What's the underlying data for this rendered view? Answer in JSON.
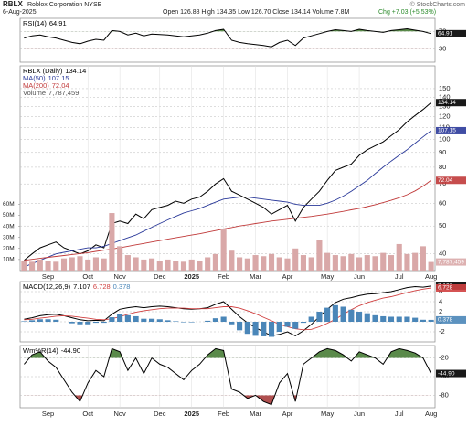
{
  "header": {
    "symbol": "RBLX",
    "company": "Roblox Corporation NYSE",
    "date": "6-Aug-2025",
    "quote": "Open 126.88 High 134.35 Low 126.70 Close 134.14 Volume 7.8M",
    "change": "Chg +7.03 (+5.53%)",
    "credit": "© StockCharts.com"
  },
  "chart_data": [
    {
      "type": "line",
      "grid": true,
      "ylim": [
        0,
        100
      ],
      "yticks": [
        30,
        70
      ],
      "fill_colors": [
        "#5a8a4a",
        "#b05050"
      ],
      "series": [
        {
          "name": "RSI(14)",
          "color": "#000000",
          "value_label": "64.91",
          "values": [
            55,
            60,
            62,
            58,
            55,
            50,
            45,
            42,
            48,
            52,
            50,
            72,
            70,
            62,
            66,
            60,
            64,
            63,
            62,
            60,
            58,
            60,
            62,
            66,
            72,
            75,
            50,
            45,
            42,
            40,
            38,
            35,
            45,
            50,
            38,
            55,
            60,
            65,
            70,
            74,
            72,
            70,
            75,
            72,
            70,
            68,
            72,
            74,
            76,
            73,
            70,
            64.91
          ]
        }
      ]
    },
    {
      "type": "line",
      "grid": true,
      "log_scale": true,
      "stack_legend": true,
      "ylim": [
        35,
        180
      ],
      "yticks": [
        40,
        50,
        60,
        70,
        80,
        90,
        100,
        110,
        120,
        130,
        140,
        150
      ],
      "y2lim": [
        0,
        185000000
      ],
      "y2ticks": [
        {
          "value": 10000000,
          "label": "10M"
        },
        {
          "value": 20000000,
          "label": "20M"
        },
        {
          "value": 30000000,
          "label": "30M"
        },
        {
          "value": 40000000,
          "label": "40M"
        },
        {
          "value": 50000000,
          "label": "50M"
        },
        {
          "value": 60000000,
          "label": "60M"
        }
      ],
      "categories": [
        null,
        null,
        null,
        "Sep",
        null,
        null,
        null,
        null,
        "Oct",
        null,
        null,
        null,
        "Nov",
        null,
        null,
        null,
        null,
        "Dec",
        null,
        null,
        null,
        "2025",
        null,
        null,
        null,
        "Feb",
        null,
        null,
        null,
        "Mar",
        null,
        null,
        null,
        "Apr",
        null,
        null,
        null,
        null,
        "May",
        null,
        null,
        null,
        "Jun",
        null,
        null,
        null,
        null,
        "Jul",
        null,
        null,
        null,
        "Aug"
      ],
      "series": [
        {
          "name": "RBLX (Daily)",
          "color": "#000000",
          "value_label": "134.14",
          "values": [
            38,
            40,
            42,
            43,
            44,
            42,
            41,
            40,
            41,
            43,
            42,
            51,
            52,
            51,
            55,
            53,
            57,
            58,
            59,
            61,
            60,
            62,
            63,
            66,
            70,
            73,
            66,
            64,
            62,
            60,
            58,
            55,
            57,
            59,
            52,
            58,
            62,
            66,
            72,
            78,
            80,
            82,
            88,
            92,
            95,
            98,
            103,
            108,
            115,
            121,
            127,
            134.14
          ]
        },
        {
          "name": "MA(50)",
          "color": "#2b3a9a",
          "value_label": "107.15",
          "values": [
            36,
            37,
            38,
            39,
            40,
            40.5,
            41,
            41.5,
            42,
            42,
            42.5,
            43.5,
            44.5,
            45.5,
            46.5,
            48,
            49.5,
            51,
            52.5,
            54,
            55.5,
            56.5,
            57.5,
            59,
            60.5,
            62,
            62.5,
            63,
            63,
            62.5,
            62,
            61.5,
            61,
            60.5,
            59.5,
            59,
            59,
            59,
            60,
            61.5,
            63.5,
            66,
            69,
            72,
            76,
            80,
            84,
            88,
            92,
            97,
            102,
            107.15
          ]
        },
        {
          "name": "MA(200)",
          "color": "#c03a3a",
          "value_label": "72.04",
          "values": [
            38,
            38.3,
            38.6,
            38.9,
            39.2,
            39.5,
            39.8,
            40.1,
            40.4,
            40.8,
            41.2,
            41.6,
            42,
            42.5,
            43,
            43.5,
            44,
            44.5,
            45,
            45.5,
            46,
            46.5,
            47,
            47.6,
            48.2,
            48.8,
            49.4,
            50,
            50.5,
            51,
            51.5,
            52,
            52.4,
            52.8,
            53.2,
            53.6,
            54,
            54.5,
            55,
            55.6,
            56.2,
            56.9,
            57.6,
            58.4,
            59.3,
            60.3,
            61.4,
            62.7,
            64.2,
            66.2,
            68.8,
            72.04
          ]
        },
        {
          "name": "Volume",
          "type": "bar",
          "axis": "y2",
          "color": "#d9a8a8",
          "value_label": "7,787,459",
          "values": [
            9000000,
            8000000,
            10000000,
            9000000,
            8000000,
            11000000,
            12000000,
            13000000,
            10000000,
            12000000,
            11000000,
            52000000,
            22000000,
            14000000,
            12000000,
            10000000,
            11000000,
            9000000,
            10000000,
            9000000,
            8000000,
            10000000,
            9000000,
            12000000,
            15000000,
            38000000,
            18000000,
            12000000,
            11000000,
            14000000,
            13000000,
            15000000,
            12000000,
            11000000,
            20000000,
            14000000,
            12000000,
            28000000,
            16000000,
            14000000,
            13000000,
            15000000,
            12000000,
            14000000,
            13000000,
            16000000,
            14000000,
            24000000,
            15000000,
            16000000,
            22000000,
            7787459
          ]
        }
      ]
    },
    {
      "type": "line",
      "grid": true,
      "ylim": [
        -4,
        8
      ],
      "yticks": [
        -2,
        0,
        2,
        4,
        6
      ],
      "series": [
        {
          "name": "MACD(12,26,9)",
          "color": "#000000",
          "value_label": "7.107",
          "values": [
            0.5,
            0.8,
            1.2,
            1.4,
            1.5,
            1.2,
            0.8,
            0.4,
            0.2,
            0.3,
            0.2,
            1.5,
            2.5,
            2.8,
            3.0,
            2.8,
            3.0,
            3.1,
            3.0,
            2.8,
            2.6,
            2.5,
            2.6,
            2.8,
            3.5,
            4.0,
            2.5,
            1.0,
            -0.2,
            -1.2,
            -2.0,
            -2.8,
            -2.5,
            -2.0,
            -2.8,
            -1.8,
            -0.5,
            1.0,
            2.5,
            3.8,
            4.5,
            4.8,
            5.2,
            5.5,
            5.6,
            5.8,
            6.0,
            6.4,
            6.8,
            7.0,
            6.9,
            7.107
          ]
        },
        {
          "color": "#d04040",
          "value_label": "6.728",
          "values": [
            0.4,
            0.5,
            0.7,
            0.9,
            1.1,
            1.2,
            1.1,
            0.9,
            0.7,
            0.5,
            0.4,
            0.6,
            1.0,
            1.5,
            1.9,
            2.2,
            2.4,
            2.6,
            2.7,
            2.7,
            2.7,
            2.6,
            2.6,
            2.6,
            2.8,
            3.0,
            3.0,
            2.7,
            2.2,
            1.6,
            0.9,
            0.2,
            -0.5,
            -1.0,
            -1.4,
            -1.6,
            -1.5,
            -1.0,
            -0.3,
            0.5,
            1.5,
            2.4,
            3.2,
            3.8,
            4.3,
            4.7,
            5.0,
            5.4,
            5.8,
            6.2,
            6.5,
            6.728
          ]
        },
        {
          "type": "bar",
          "color": "#4a86b8",
          "value_label": "0.378",
          "values": [
            0.1,
            0.3,
            0.5,
            0.5,
            0.4,
            0,
            -0.3,
            -0.5,
            -0.5,
            -0.2,
            -0.2,
            0.9,
            1.5,
            1.3,
            1.1,
            0.6,
            0.6,
            0.5,
            0.3,
            0.1,
            -0.1,
            -0.1,
            0,
            0.2,
            0.7,
            1.0,
            -0.5,
            -1.7,
            -2.4,
            -2.8,
            -2.9,
            -3.0,
            -2.0,
            -1.0,
            -1.4,
            -0.2,
            1.0,
            2.0,
            2.8,
            3.3,
            3.0,
            2.4,
            2.0,
            1.7,
            1.3,
            1.1,
            1.0,
            1.0,
            1.0,
            0.8,
            0.4,
            0.378
          ]
        }
      ]
    },
    {
      "type": "line",
      "grid": true,
      "ylim": [
        -100,
        0
      ],
      "yticks": [
        -80,
        -50,
        -20
      ],
      "fill_colors": [
        "#5a8a4a",
        "#b05050"
      ],
      "categories": [
        null,
        null,
        null,
        "Sep",
        null,
        null,
        null,
        null,
        "Oct",
        null,
        null,
        null,
        "Nov",
        null,
        null,
        null,
        null,
        "Dec",
        null,
        null,
        null,
        "2025",
        null,
        null,
        null,
        "Feb",
        null,
        null,
        null,
        "Mar",
        null,
        null,
        null,
        "Apr",
        null,
        null,
        null,
        null,
        "May",
        null,
        null,
        null,
        "Jun",
        null,
        null,
        null,
        null,
        "Jul",
        null,
        null,
        null,
        "Aug"
      ],
      "series": [
        {
          "name": "Wm%R(14)",
          "color": "#000000",
          "value_label": "-44.90",
          "values": [
            -30,
            -15,
            -10,
            -25,
            -35,
            -55,
            -75,
            -90,
            -60,
            -40,
            -50,
            -5,
            -10,
            -40,
            -20,
            -45,
            -20,
            -30,
            -35,
            -45,
            -55,
            -40,
            -30,
            -15,
            -5,
            -8,
            -70,
            -75,
            -85,
            -80,
            -90,
            -95,
            -60,
            -45,
            -90,
            -30,
            -20,
            -10,
            -5,
            -8,
            -15,
            -25,
            -10,
            -15,
            -20,
            -30,
            -10,
            -5,
            -8,
            -12,
            -20,
            -44.9
          ]
        }
      ]
    }
  ]
}
